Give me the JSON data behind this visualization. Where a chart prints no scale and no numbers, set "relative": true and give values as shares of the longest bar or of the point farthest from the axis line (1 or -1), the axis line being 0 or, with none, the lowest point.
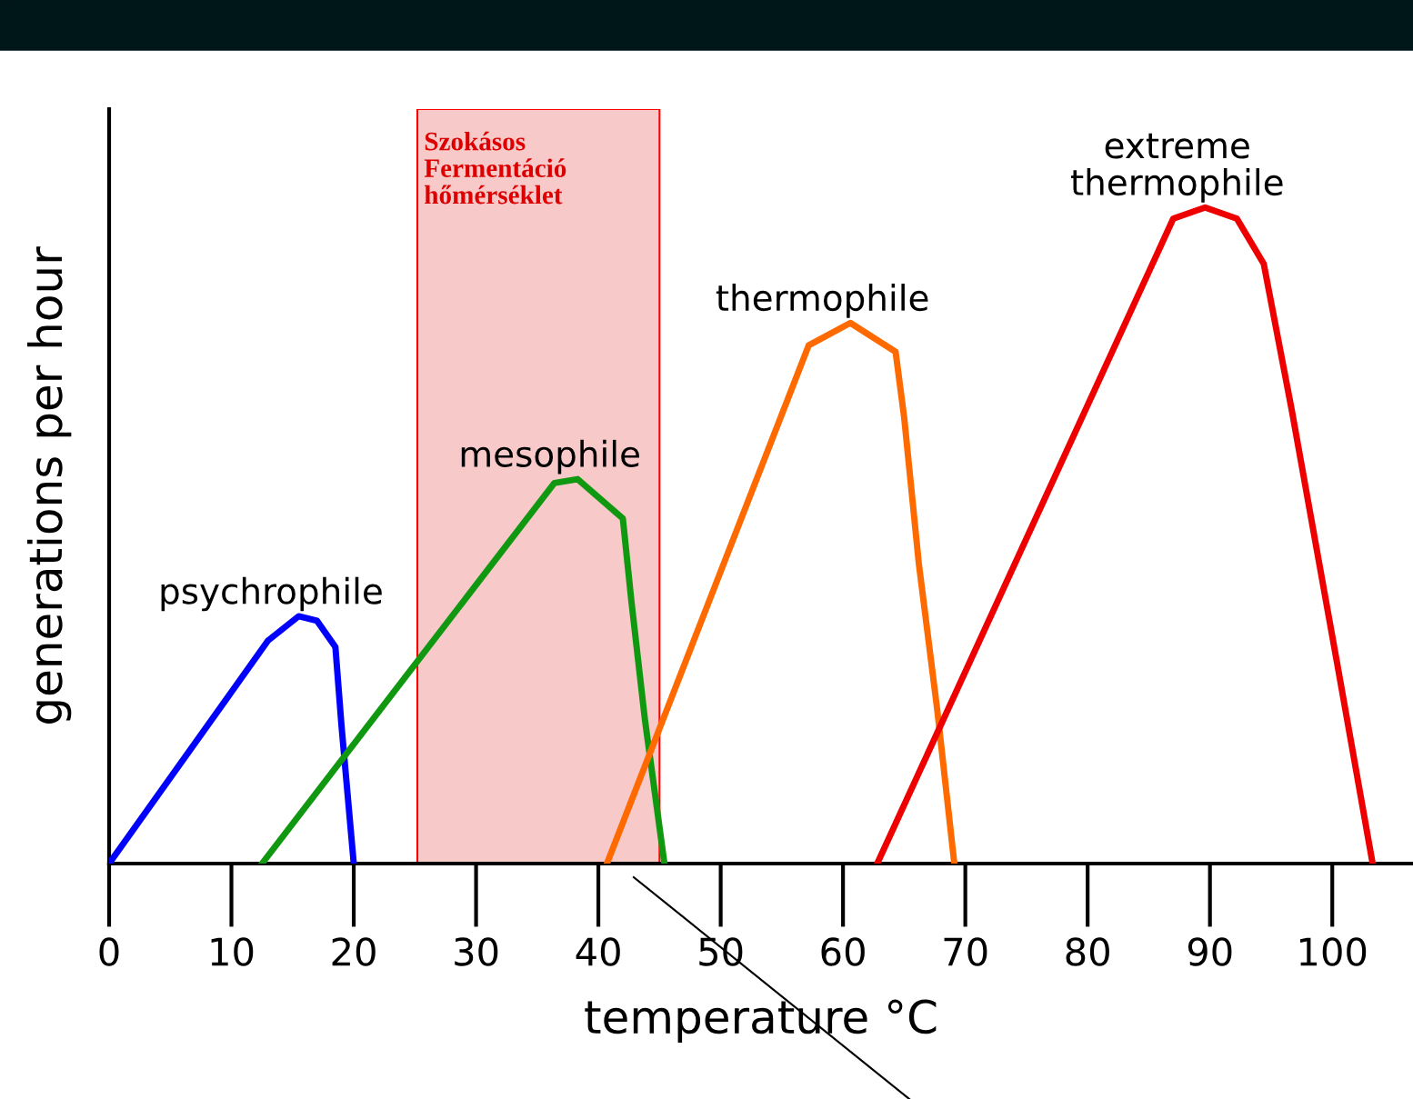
{
  "chart_data": {
    "type": "line",
    "relative": true,
    "xlabel": "temperature °C",
    "ylabel": "generations per hour",
    "xlim": [
      0,
      106.6
    ],
    "xticks": [
      0,
      10,
      20,
      30,
      40,
      50,
      60,
      70,
      80,
      90,
      100
    ],
    "grid": false,
    "legend": false,
    "marker": "none",
    "line_style": "solid",
    "series": [
      {
        "name": "psychrophile",
        "color": "#0000ff",
        "x": [
          0,
          13,
          15.5,
          17,
          18.5,
          19,
          20
        ],
        "values": [
          0,
          0.34,
          0.377,
          0.37,
          0.33,
          0.21,
          0
        ]
      },
      {
        "name": "mesophile",
        "color": "#109910",
        "x": [
          12.5,
          36.4,
          38.3,
          42,
          42.7,
          43.8,
          45.4
        ],
        "values": [
          0,
          0.58,
          0.586,
          0.526,
          0.4,
          0.22,
          0
        ]
      },
      {
        "name": "thermophile",
        "color": "#ff6a00",
        "x": [
          40.7,
          57.2,
          60.6,
          64.3,
          65,
          66.2,
          67.7,
          69.1
        ],
        "values": [
          0,
          0.79,
          0.824,
          0.78,
          0.68,
          0.457,
          0.235,
          0
        ]
      },
      {
        "name": "extreme\nthermophile",
        "color": "#ee0000",
        "x": [
          62.8,
          87,
          89.6,
          92.2,
          94.4,
          96.7,
          100.4,
          103.3
        ],
        "values": [
          0,
          0.983,
          1,
          0.983,
          0.914,
          0.69,
          0.305,
          0
        ]
      }
    ],
    "bands": [
      {
        "axis": "x",
        "from": 25.2,
        "to": 45,
        "label": "Szokásos\nFermentáció\nhőmérséklet",
        "color": "#f7c9c9"
      }
    ]
  }
}
